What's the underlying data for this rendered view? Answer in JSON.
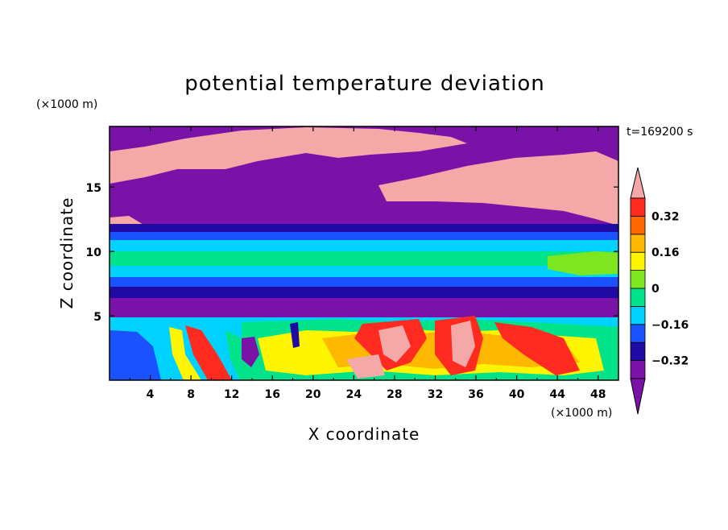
{
  "chart_data": {
    "type": "heatmap",
    "title": "potential temperature deviation",
    "xlabel": "X coordinate",
    "ylabel": "Z coordinate",
    "x_units": "(×1000 m)",
    "y_units": "(×1000 m)",
    "time_label": "t=169200 s",
    "xlim": [
      0,
      50
    ],
    "ylim": [
      0,
      19.7
    ],
    "x_ticks": [
      4,
      8,
      12,
      16,
      20,
      24,
      28,
      32,
      36,
      40,
      44,
      48
    ],
    "y_ticks": [
      5,
      10,
      15
    ],
    "colorbar": {
      "levels": [
        -0.4,
        -0.32,
        -0.24,
        -0.16,
        -0.08,
        0,
        0.08,
        0.16,
        0.24,
        0.32,
        0.4
      ],
      "labels": [
        "0.32",
        "0.16",
        "0",
        "−0.16",
        "−0.32"
      ],
      "label_values": [
        0.32,
        0.16,
        0,
        -0.16,
        -0.32
      ],
      "colors": [
        "#7b12a8",
        "#1f0aa3",
        "#1a52ff",
        "#00d2ff",
        "#00e38a",
        "#7ee620",
        "#fff500",
        "#ffb800",
        "#ff6a00",
        "#ff2b20",
        "#f5a8a8"
      ],
      "extend": "both"
    }
  }
}
